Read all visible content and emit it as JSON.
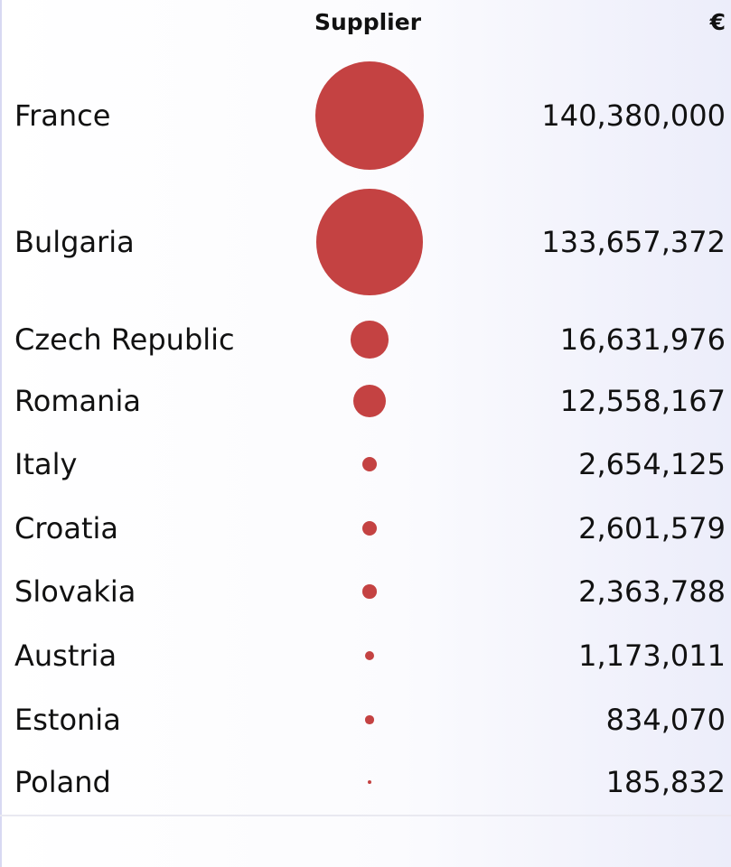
{
  "chart_data": {
    "type": "table",
    "columns": [
      "",
      "Supplier",
      "€"
    ],
    "rows": [
      {
        "country": "France",
        "amount": 140380000,
        "label": "140,380,000"
      },
      {
        "country": "Bulgaria",
        "amount": 133657372,
        "label": "133,657,372"
      },
      {
        "country": "Czech Republic",
        "amount": 16631976,
        "label": "16,631,976"
      },
      {
        "country": "Romania",
        "amount": 12558167,
        "label": "12,558,167"
      },
      {
        "country": "Italy",
        "amount": 2654125,
        "label": "2,654,125"
      },
      {
        "country": "Croatia",
        "amount": 2601579,
        "label": "2,601,579"
      },
      {
        "country": "Slovakia",
        "amount": 2363788,
        "label": "2,363,788"
      },
      {
        "country": "Austria",
        "amount": 1173011,
        "label": "1,173,011"
      },
      {
        "country": "Estonia",
        "amount": 834070,
        "label": "834,070"
      },
      {
        "country": "Poland",
        "amount": 185832,
        "label": "185,832"
      }
    ],
    "bubble_color": "#c44242"
  }
}
